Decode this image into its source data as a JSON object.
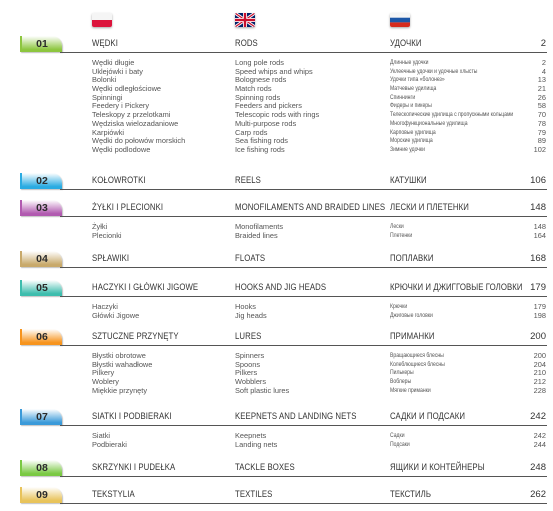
{
  "sections": [
    {
      "num": "01",
      "color": "#8dc63f",
      "pl": "WĘDKI",
      "en": "RODS",
      "ru": "УДОЧКИ",
      "page": "2",
      "items": [
        {
          "pl": "Wędki długie",
          "en": "Long pole rods",
          "ru": "Длинные удочки",
          "page": "2"
        },
        {
          "pl": "Uklejówki i baty",
          "en": "Speed whips and whips",
          "ru": "Уклеечные удочки и удочные хлысты",
          "page": "4"
        },
        {
          "pl": "Bolonki",
          "en": "Bolognese rods",
          "ru": "Удочки типа «болонез»",
          "page": "13"
        },
        {
          "pl": "Wędki odległościowe",
          "en": "Match rods",
          "ru": "Матчевые удилища",
          "page": "21"
        },
        {
          "pl": "Spinningi",
          "en": "Spinning rods",
          "ru": "Спиннинги",
          "page": "26"
        },
        {
          "pl": "Feedery i Pickery",
          "en": "Feeders and pickers",
          "ru": "Фидеры и пикеры",
          "page": "58"
        },
        {
          "pl": "Teleskopy z przelotkami",
          "en": "Telescopic rods with rings",
          "ru": "Телескопические удилища с пропускными кольцами",
          "page": "70"
        },
        {
          "pl": "Wędziska wielozadaniowe",
          "en": "Multi-purpose rods",
          "ru": "Многофункциональные удилища",
          "page": "78"
        },
        {
          "pl": "Karpiówki",
          "en": "Carp rods",
          "ru": "Карповые удилища",
          "page": "79"
        },
        {
          "pl": "Wędki do połowów morskich",
          "en": "Sea fishing rods",
          "ru": "Морские удилища",
          "page": "89"
        },
        {
          "pl": "Wędki podlodowe",
          "en": "Ice fishing rods",
          "ru": "Зимние удочки",
          "page": "102"
        }
      ]
    },
    {
      "num": "02",
      "color": "#29abe2",
      "pl": "KOŁOWROTKI",
      "en": "REELS",
      "ru": "КАТУШКИ",
      "page": "106",
      "items": []
    },
    {
      "num": "03",
      "color": "#b15ab0",
      "pl": "ŻYŁKI I PLECIONKI",
      "en": "MONOFILAMENTS AND BRAIDED LINES",
      "ru": "ЛЕСКИ И ПЛЕТЕНКИ",
      "page": "148",
      "items": [
        {
          "pl": "Żyłki",
          "en": "Monofilaments",
          "ru": "Лески",
          "page": "148"
        },
        {
          "pl": "Plecionki",
          "en": "Braided lines",
          "ru": "Плетенки",
          "page": "164"
        }
      ]
    },
    {
      "num": "04",
      "color": "#c8a96a",
      "pl": "SPŁAWIKI",
      "en": "FLOATS",
      "ru": "ПОПЛАВКИ",
      "page": "168",
      "items": []
    },
    {
      "num": "05",
      "color": "#3dbdad",
      "pl": "HACZYKI I GŁÓWKI JIGOWE",
      "en": "HOOKS AND JIG HEADS",
      "ru": "КРЮЧКИ И ДЖИГГОВЫЕ ГОЛОВКИ",
      "page": "179",
      "items": [
        {
          "pl": "Haczyki",
          "en": "Hooks",
          "ru": "Крючки",
          "page": "179"
        },
        {
          "pl": "Główki Jigowe",
          "en": "Jig heads",
          "ru": "Джиговые головки",
          "page": "198"
        }
      ]
    },
    {
      "num": "06",
      "color": "#f7941d",
      "pl": "SZTUCZNE PRZYNĘTY",
      "en": "LURES",
      "ru": "ПРИМАНКИ",
      "page": "200",
      "items": [
        {
          "pl": "Błystki obrotowe",
          "en": "Spinners",
          "ru": "Вращающиеся блесны",
          "page": "200"
        },
        {
          "pl": "Błystki wahadłowe",
          "en": "Spoons",
          "ru": "Колеблющиеся блесны",
          "page": "204"
        },
        {
          "pl": "Pilkery",
          "en": "Pilkers",
          "ru": "Пилькеры",
          "page": "210"
        },
        {
          "pl": "Woblery",
          "en": "Wobblers",
          "ru": "Воблеры",
          "page": "212"
        },
        {
          "pl": "Miękkie przynęty",
          "en": "Soft plastic lures",
          "ru": "Мягкие приманки",
          "page": "228"
        }
      ]
    },
    {
      "num": "07",
      "color": "#3a9ad9",
      "pl": "SIATKI I PODBIERAKI",
      "en": "KEEPNETS AND LANDING NETS",
      "ru": "САДКИ И ПОДСАКИ",
      "page": "242",
      "items": [
        {
          "pl": "Siatki",
          "en": "Keepnets",
          "ru": "Садки",
          "page": "242"
        },
        {
          "pl": "Podbieraki",
          "en": "Landing nets",
          "ru": "Подсаки",
          "page": "244"
        }
      ]
    },
    {
      "num": "08",
      "color": "#7ac943",
      "pl": "SKRZYNKI I PUDEŁKA",
      "en": "TACKLE BOXES",
      "ru": "ЯЩИКИ И КОНТЕЙНЕРЫ",
      "page": "248",
      "items": []
    },
    {
      "num": "09",
      "color": "#e8c35a",
      "pl": "TEKSTYLIA",
      "en": "TEXTILES",
      "ru": "ТЕКСТИЛЬ",
      "page": "262",
      "items": []
    }
  ]
}
